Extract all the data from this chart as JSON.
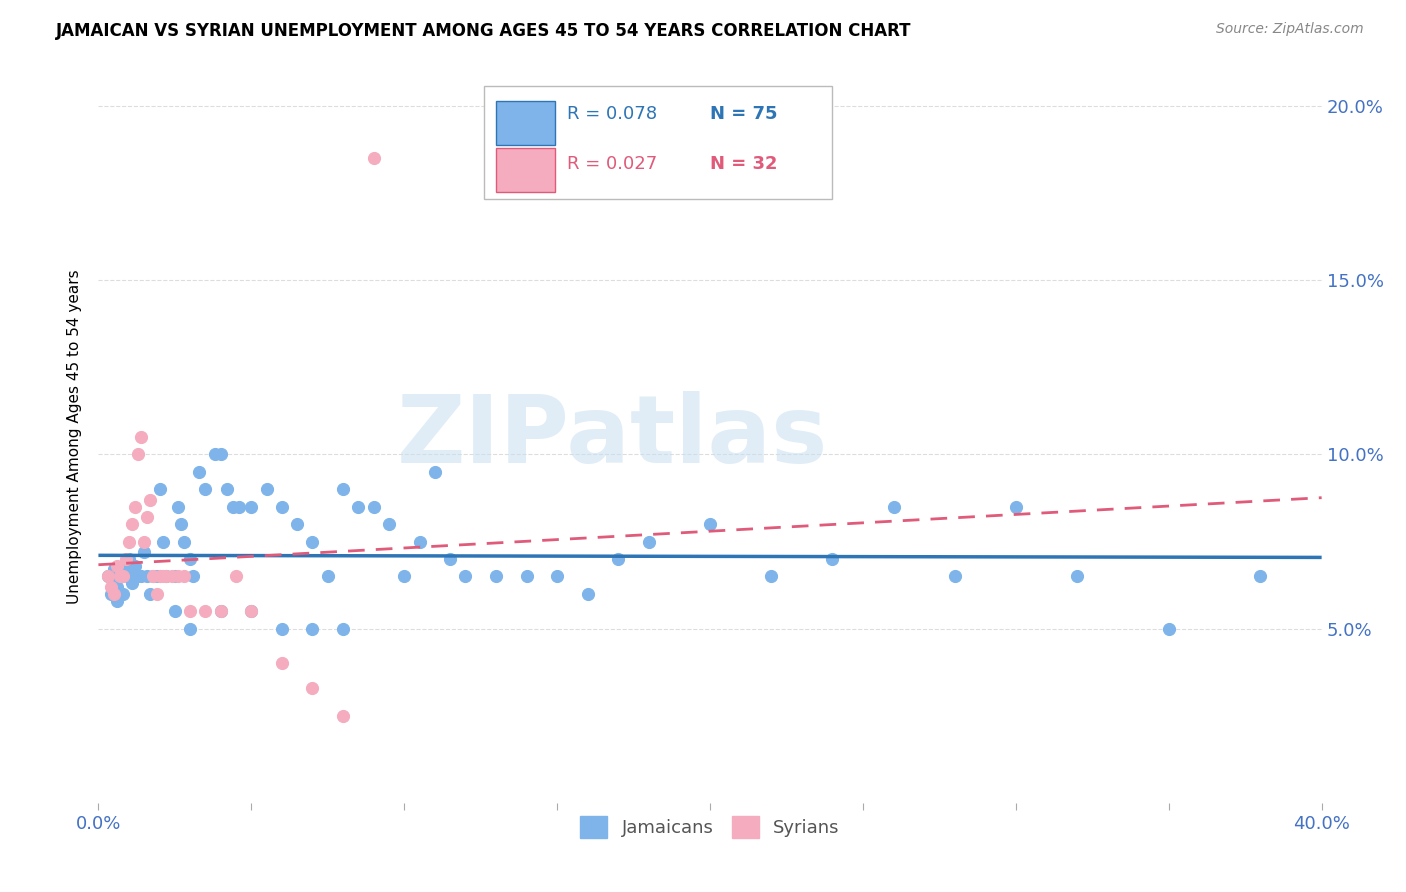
{
  "title": "JAMAICAN VS SYRIAN UNEMPLOYMENT AMONG AGES 45 TO 54 YEARS CORRELATION CHART",
  "source": "Source: ZipAtlas.com",
  "ylabel": "Unemployment Among Ages 45 to 54 years",
  "xlim": [
    0.0,
    0.4
  ],
  "ylim": [
    0.0,
    0.21
  ],
  "xtick_positions": [
    0.0,
    0.05,
    0.1,
    0.15,
    0.2,
    0.25,
    0.3,
    0.35,
    0.4
  ],
  "xticklabels": [
    "0.0%",
    "",
    "",
    "",
    "",
    "",
    "",
    "",
    "40.0%"
  ],
  "ytick_positions": [
    0.05,
    0.1,
    0.15,
    0.2
  ],
  "ytick_labels": [
    "5.0%",
    "10.0%",
    "15.0%",
    "20.0%"
  ],
  "jamaican_color": "#7EB4EA",
  "jamaican_line_color": "#2E75B6",
  "syrian_color": "#F4ACBE",
  "syrian_line_color": "#E05A7A",
  "jamaican_R": "0.078",
  "jamaican_N": "75",
  "syrian_R": "0.027",
  "syrian_N": "32",
  "watermark_text": "ZIPatlas",
  "watermark_color": "#C8DFF0",
  "background_color": "#FFFFFF",
  "grid_color": "#DDDDDD",
  "tick_color": "#4472C4",
  "title_fontsize": 12,
  "axis_fontsize": 13,
  "legend_fontsize": 13,
  "jamaican_x": [
    0.003,
    0.004,
    0.005,
    0.005,
    0.006,
    0.006,
    0.007,
    0.008,
    0.008,
    0.009,
    0.01,
    0.01,
    0.011,
    0.012,
    0.013,
    0.014,
    0.015,
    0.016,
    0.017,
    0.018,
    0.019,
    0.02,
    0.02,
    0.021,
    0.022,
    0.025,
    0.026,
    0.027,
    0.028,
    0.03,
    0.031,
    0.033,
    0.035,
    0.038,
    0.04,
    0.042,
    0.044,
    0.046,
    0.05,
    0.055,
    0.06,
    0.065,
    0.07,
    0.075,
    0.08,
    0.085,
    0.09,
    0.095,
    0.1,
    0.105,
    0.11,
    0.115,
    0.12,
    0.13,
    0.14,
    0.15,
    0.16,
    0.17,
    0.18,
    0.2,
    0.22,
    0.24,
    0.26,
    0.28,
    0.3,
    0.32,
    0.35,
    0.38,
    0.025,
    0.03,
    0.04,
    0.05,
    0.06,
    0.07,
    0.08
  ],
  "jamaican_y": [
    0.065,
    0.06,
    0.063,
    0.067,
    0.062,
    0.058,
    0.065,
    0.065,
    0.06,
    0.067,
    0.065,
    0.07,
    0.063,
    0.068,
    0.065,
    0.065,
    0.072,
    0.065,
    0.06,
    0.065,
    0.065,
    0.065,
    0.09,
    0.075,
    0.065,
    0.065,
    0.085,
    0.08,
    0.075,
    0.07,
    0.065,
    0.095,
    0.09,
    0.1,
    0.1,
    0.09,
    0.085,
    0.085,
    0.085,
    0.09,
    0.085,
    0.08,
    0.075,
    0.065,
    0.09,
    0.085,
    0.085,
    0.08,
    0.065,
    0.075,
    0.095,
    0.07,
    0.065,
    0.065,
    0.065,
    0.065,
    0.06,
    0.07,
    0.075,
    0.08,
    0.065,
    0.07,
    0.085,
    0.065,
    0.085,
    0.065,
    0.05,
    0.065,
    0.055,
    0.05,
    0.055,
    0.055,
    0.05,
    0.05,
    0.05
  ],
  "syrian_x": [
    0.003,
    0.004,
    0.005,
    0.006,
    0.007,
    0.008,
    0.009,
    0.01,
    0.011,
    0.012,
    0.013,
    0.014,
    0.015,
    0.016,
    0.017,
    0.018,
    0.019,
    0.02,
    0.021,
    0.022,
    0.024,
    0.026,
    0.028,
    0.03,
    0.035,
    0.04,
    0.045,
    0.05,
    0.06,
    0.07,
    0.08,
    0.09
  ],
  "syrian_y": [
    0.065,
    0.062,
    0.06,
    0.068,
    0.065,
    0.065,
    0.07,
    0.075,
    0.08,
    0.085,
    0.1,
    0.105,
    0.075,
    0.082,
    0.087,
    0.065,
    0.06,
    0.065,
    0.065,
    0.065,
    0.065,
    0.065,
    0.065,
    0.055,
    0.055,
    0.055,
    0.065,
    0.055,
    0.04,
    0.033,
    0.025,
    0.185
  ]
}
